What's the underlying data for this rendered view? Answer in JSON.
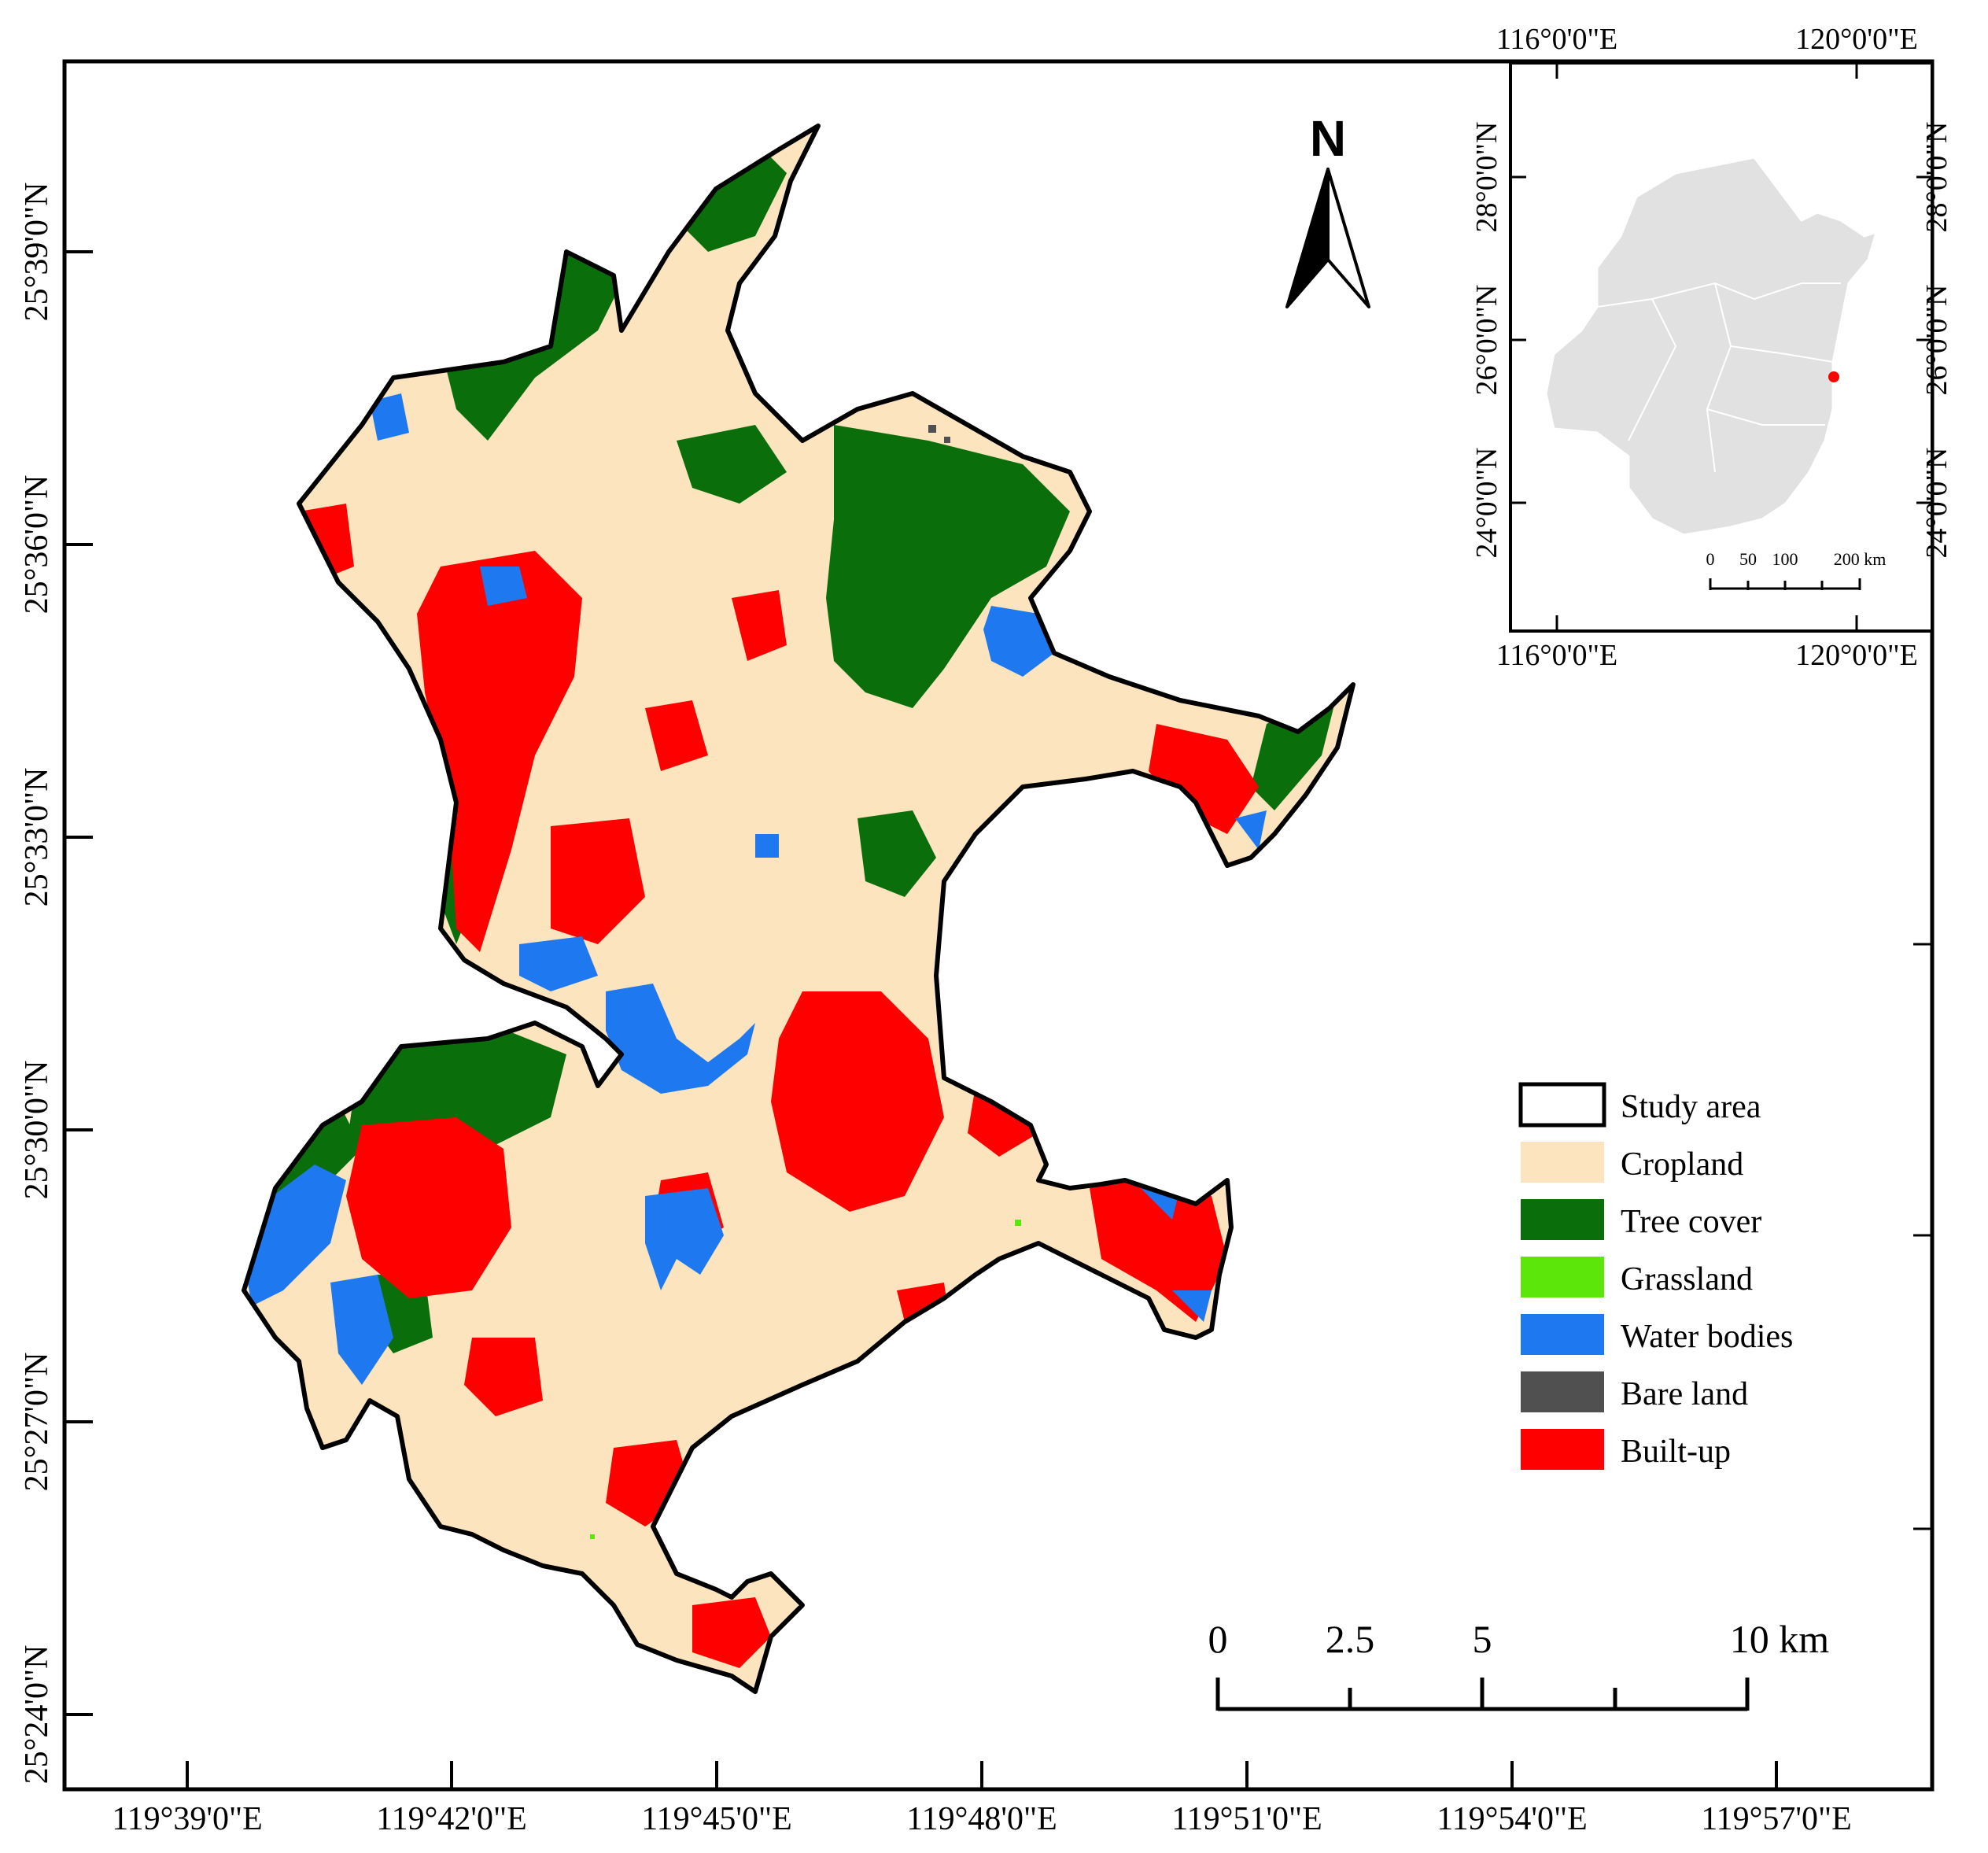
{
  "colors": {
    "cropland": "#fbe4be",
    "tree_cover": "#0a6e0a",
    "grassland": "#5ce60a",
    "water_bodies": "#1e78f0",
    "bare_land": "#505050",
    "built_up": "#ff0000",
    "inset_region": "#e1e1e1",
    "outline": "#000000"
  },
  "axes": {
    "bottom_ticks": [
      "119°39'0\"E",
      "119°42'0\"E",
      "119°45'0\"E",
      "119°48'0\"E",
      "119°51'0\"E",
      "119°54'0\"E",
      "119°57'0\"E"
    ],
    "left_ticks": [
      "25°39'0\"N",
      "25°36'0\"N",
      "25°33'0\"N",
      "25°30'0\"N",
      "25°27'0\"N",
      "25°24'0\"N"
    ]
  },
  "north_arrow": {
    "label": "N"
  },
  "scale_bar": {
    "labels": [
      "0",
      "2.5",
      "5",
      "10 km"
    ]
  },
  "legend": {
    "items": [
      {
        "label": "Study area",
        "swatch": "outline"
      },
      {
        "label": "Cropland",
        "swatch": "cropland"
      },
      {
        "label": "Tree cover",
        "swatch": "tree_cover"
      },
      {
        "label": "Grassland",
        "swatch": "grassland"
      },
      {
        "label": "Water bodies",
        "swatch": "water_bodies"
      },
      {
        "label": "Bare land",
        "swatch": "bare_land"
      },
      {
        "label": "Built-up",
        "swatch": "built_up"
      }
    ]
  },
  "inset": {
    "top_ticks": [
      "116°0'0\"E",
      "120°0'0\"E"
    ],
    "bottom_ticks": [
      "116°0'0\"E",
      "120°0'0\"E"
    ],
    "left_ticks": [
      "28°0'0\"N",
      "26°0'0\"N",
      "24°0'0\"N"
    ],
    "right_ticks": [
      "28°0'0\"N",
      "26°0'0\"N",
      "24°0'0\"N"
    ],
    "scale_labels": [
      "0",
      "50",
      "100",
      "200 km"
    ]
  }
}
